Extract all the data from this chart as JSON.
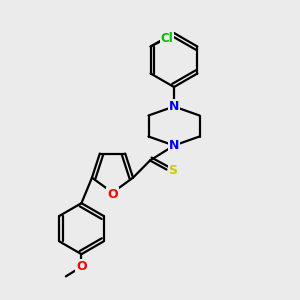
{
  "bg_color": "#ebebeb",
  "atom_colors": {
    "C": "#000000",
    "N": "#0000ff",
    "O": "#ff0000",
    "S": "#cccc00",
    "Cl": "#00bb00"
  },
  "bond_color": "#000000",
  "bond_width": 1.6
}
